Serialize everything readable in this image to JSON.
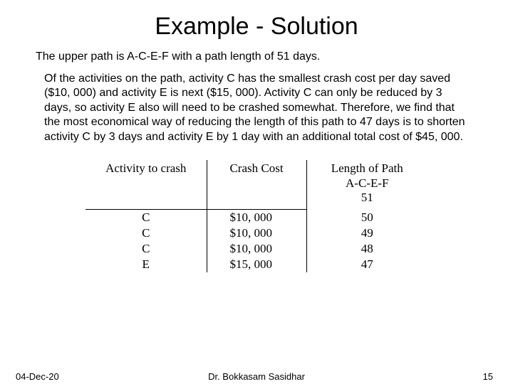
{
  "title": "Example - Solution",
  "subtitle": "The upper path is A-C-E-F with a path length of 51 days.",
  "body": "Of the activities on the path, activity C has the smallest crash cost per day saved ($10, 000) and activity E is next ($15, 000). Activity C can only be reduced by 3 days, so activity E also will need to be crashed somewhat. Therefore, we find that the most economical way of reducing the length of this path to 47 days is to shorten activity C by 3 days and activity E by 1 day with an additional total cost of $45, 000.",
  "table": {
    "headers": {
      "activity": "Activity to crash",
      "cost": "Crash Cost",
      "length_line1": "Length of Path",
      "length_line2": "A-C-E-F"
    },
    "initial_length": "51",
    "rows": [
      {
        "activity": "C",
        "cost": "$10, 000",
        "length": "50"
      },
      {
        "activity": "C",
        "cost": "$10, 000",
        "length": "49"
      },
      {
        "activity": "C",
        "cost": "$10, 000",
        "length": "48"
      },
      {
        "activity": "E",
        "cost": "$15, 000",
        "length": "47"
      }
    ]
  },
  "footer": {
    "date": "04-Dec-20",
    "author": "Dr. Bokkasam Sasidhar",
    "page": "15"
  },
  "colors": {
    "background": "#ffffff",
    "text": "#000000",
    "border": "#000000"
  }
}
